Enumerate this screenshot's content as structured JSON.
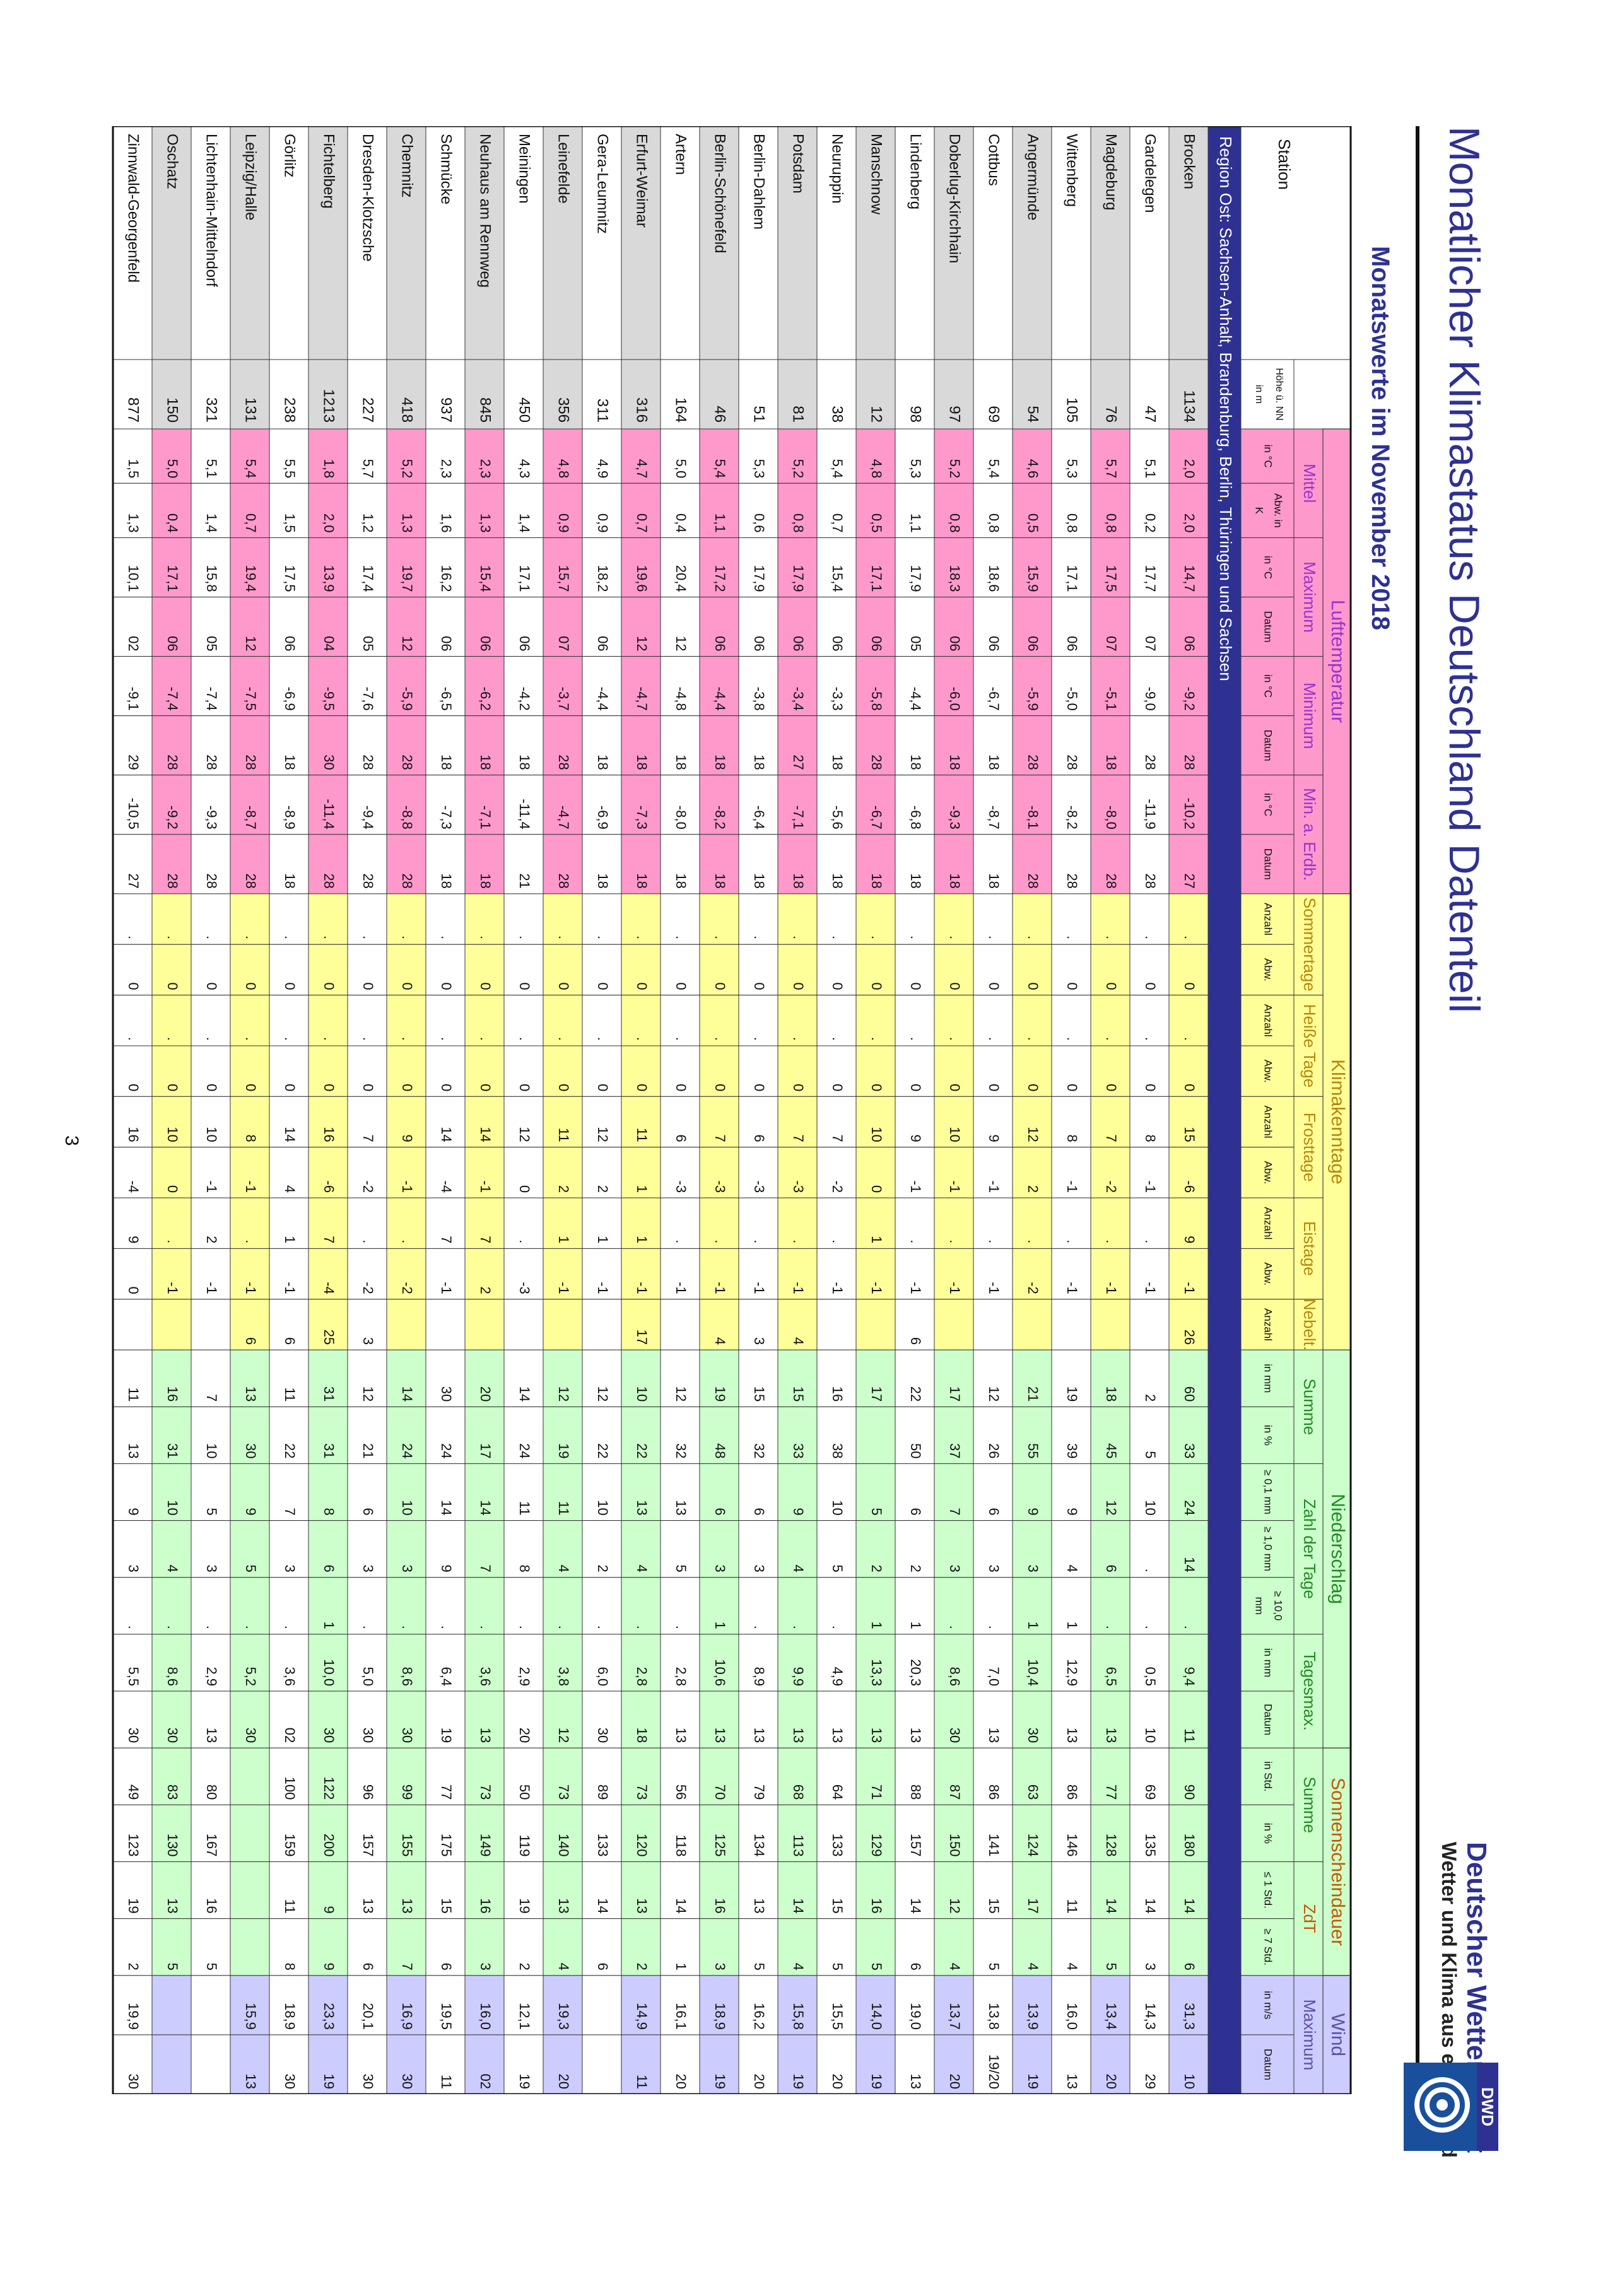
{
  "title": "Monatlicher Klimastatus Deutschland Datenteil",
  "subtitle": "Monatswerte im November 2018",
  "brand": {
    "name": "Deutscher Wetterdienst",
    "tagline": "Wetter und Klima aus einer Hand",
    "abbr": "DWD"
  },
  "page_number": "3",
  "colors": {
    "navy": "#2e3192",
    "pink": "#ff99cc",
    "yellow": "#ffff99",
    "green": "#ccffcc",
    "lilac": "#ccccff",
    "grey": "#d9d9d9",
    "rowWhite": "#ffffff"
  },
  "header": {
    "station": "Station",
    "hoehe": "Höhe ü. NN in m",
    "groups": [
      {
        "label": "Lufttemperatur",
        "color": "#9933cc"
      },
      {
        "label": "Klimakenntage",
        "color": "#b8860b"
      },
      {
        "label": "Niederschlag",
        "color": "#228b22"
      },
      {
        "label": "Sonnenscheindauer",
        "color": "#c05a00"
      },
      {
        "label": "Wind",
        "color": "#5b4fa8"
      }
    ],
    "subgroups": [
      "Mittel",
      "Maximum",
      "Minimum",
      "Min. a. Erdb.",
      "Sommertage",
      "Heiße Tage",
      "Frosttage",
      "Eistage",
      "Nebelt.",
      "Summe",
      "Zahl der Tage",
      "Tagesmax.",
      "Summe",
      "ZdT",
      "Maximum"
    ],
    "units": [
      "in °C",
      "Abw. in K",
      "in °C",
      "Datum",
      "in °C",
      "Datum",
      "in °C",
      "Datum",
      "Anzahl",
      "Abw.",
      "Anzahl",
      "Abw.",
      "Anzahl",
      "Abw.",
      "Anzahl",
      "Abw.",
      "Anzahl",
      "in mm",
      "in %",
      "≥ 0,1 mm",
      "≥ 1,0 mm",
      "≥ 10,0 mm",
      "in mm",
      "Datum",
      "in Std.",
      "in %",
      "≤ 1 Std.",
      "≥ 7 Std.",
      "in m/s",
      "Datum"
    ],
    "region": "Region Ost: Sachsen-Anhalt, Brandenburg, Berlin, Thüringen und Sachsen"
  },
  "rows": [
    {
      "name": "Brocken",
      "h": "1134",
      "v": [
        "2,0",
        "2,0",
        "14,7",
        "06",
        "-9,2",
        "28",
        "-10,2",
        "27",
        ".",
        "0",
        ".",
        "0",
        "15",
        "-6",
        "9",
        "-1",
        "26",
        "60",
        "33",
        "24",
        "14",
        ".",
        "9,4",
        "11",
        "90",
        "180",
        "14",
        "6",
        "31,3",
        "10"
      ]
    },
    {
      "name": "Gardelegen",
      "h": "47",
      "v": [
        "5,1",
        "0,2",
        "17,7",
        "07",
        "-9,0",
        "28",
        "-11,9",
        "28",
        ".",
        "0",
        ".",
        "0",
        "8",
        "-1",
        ".",
        "-1",
        "",
        "2",
        "5",
        "10",
        ".",
        ".",
        "0,5",
        "10",
        "69",
        "135",
        "14",
        "3",
        "14,3",
        "29"
      ]
    },
    {
      "name": "Magdeburg",
      "h": "76",
      "v": [
        "5,7",
        "0,8",
        "17,5",
        "07",
        "-5,1",
        "18",
        "-8,0",
        "28",
        ".",
        "0",
        ".",
        "0",
        "7",
        "-2",
        ".",
        "-1",
        "",
        "18",
        "45",
        "12",
        "6",
        ".",
        "6,5",
        "13",
        "77",
        "128",
        "14",
        "5",
        "13,4",
        "20"
      ]
    },
    {
      "name": "Wittenberg",
      "h": "105",
      "v": [
        "5,3",
        "0,8",
        "17,1",
        "06",
        "-5,0",
        "28",
        "-8,2",
        "28",
        ".",
        "0",
        ".",
        "0",
        "8",
        "-1",
        ".",
        "-1",
        "",
        "19",
        "39",
        "9",
        "4",
        "1",
        "12,9",
        "13",
        "86",
        "146",
        "11",
        "4",
        "16,0",
        "13"
      ]
    },
    {
      "name": "Angermünde",
      "h": "54",
      "v": [
        "4,6",
        "0,5",
        "15,9",
        "06",
        "-5,9",
        "28",
        "-8,1",
        "28",
        ".",
        "0",
        ".",
        "0",
        "12",
        "2",
        ".",
        "-2",
        "",
        "21",
        "55",
        "9",
        "3",
        "1",
        "10,4",
        "30",
        "63",
        "124",
        "17",
        "4",
        "13,9",
        "19"
      ]
    },
    {
      "name": "Cottbus",
      "h": "69",
      "v": [
        "5,4",
        "0,8",
        "18,6",
        "06",
        "-6,7",
        "18",
        "-8,7",
        "18",
        ".",
        "0",
        ".",
        "0",
        "9",
        "-1",
        ".",
        "-1",
        "",
        "12",
        "26",
        "6",
        "3",
        ".",
        "7,0",
        "13",
        "86",
        "141",
        "15",
        "5",
        "13,8",
        "19/20"
      ]
    },
    {
      "name": "Doberlug-Kirchhain",
      "h": "97",
      "v": [
        "5,2",
        "0,8",
        "18,3",
        "06",
        "-6,0",
        "18",
        "-9,3",
        "18",
        ".",
        "0",
        ".",
        "0",
        "10",
        "-1",
        ".",
        "-1",
        "",
        "17",
        "37",
        "7",
        "3",
        ".",
        "8,6",
        "30",
        "87",
        "150",
        "12",
        "4",
        "13,7",
        "20"
      ]
    },
    {
      "name": "Lindenberg",
      "h": "98",
      "v": [
        "5,3",
        "1,1",
        "17,9",
        "05",
        "-4,4",
        "18",
        "-6,8",
        "18",
        ".",
        "0",
        ".",
        "0",
        "9",
        "-1",
        ".",
        "-1",
        "6",
        "22",
        "50",
        "6",
        "2",
        "1",
        "20,3",
        "13",
        "88",
        "157",
        "14",
        "6",
        "19,0",
        "13"
      ]
    },
    {
      "name": "Manschnow",
      "h": "12",
      "v": [
        "4,8",
        "0,5",
        "17,1",
        "06",
        "-5,8",
        "28",
        "-6,7",
        "18",
        ".",
        "0",
        ".",
        "0",
        "10",
        "0",
        "1",
        "-1",
        "",
        "17",
        "",
        "5",
        "2",
        "1",
        "13,3",
        "13",
        "71",
        "129",
        "16",
        "5",
        "14,0",
        "19"
      ]
    },
    {
      "name": "Neuruppin",
      "h": "38",
      "v": [
        "5,4",
        "0,7",
        "15,4",
        "06",
        "-3,3",
        "18",
        "-5,6",
        "18",
        ".",
        "0",
        ".",
        "0",
        "7",
        "-2",
        ".",
        "-1",
        "",
        "16",
        "38",
        "10",
        "5",
        ".",
        "4,9",
        "13",
        "64",
        "133",
        "15",
        "5",
        "15,5",
        "20"
      ]
    },
    {
      "name": "Potsdam",
      "h": "81",
      "v": [
        "5,2",
        "0,8",
        "17,9",
        "06",
        "-3,4",
        "27",
        "-7,1",
        "18",
        ".",
        "0",
        ".",
        "0",
        "7",
        "-3",
        ".",
        "-1",
        "4",
        "15",
        "33",
        "9",
        "4",
        ".",
        "9,9",
        "13",
        "68",
        "113",
        "14",
        "4",
        "15,8",
        "19"
      ]
    },
    {
      "name": "Berlin-Dahlem",
      "h": "51",
      "v": [
        "5,3",
        "0,6",
        "17,9",
        "06",
        "-3,8",
        "18",
        "-6,4",
        "18",
        ".",
        "0",
        ".",
        "0",
        "6",
        "-3",
        ".",
        "-1",
        "3",
        "15",
        "32",
        "6",
        "3",
        ".",
        "8,9",
        "13",
        "79",
        "134",
        "13",
        "5",
        "16,2",
        "20"
      ]
    },
    {
      "name": "Berlin-Schönefeld",
      "h": "46",
      "v": [
        "5,4",
        "1,1",
        "17,2",
        "06",
        "-4,4",
        "18",
        "-8,2",
        "18",
        ".",
        "0",
        ".",
        "0",
        "7",
        "-3",
        ".",
        "-1",
        "4",
        "19",
        "48",
        "6",
        "3",
        "1",
        "10,6",
        "13",
        "70",
        "125",
        "16",
        "3",
        "18,9",
        "19"
      ]
    },
    {
      "name": "Artern",
      "h": "164",
      "v": [
        "5,0",
        "0,4",
        "20,4",
        "12",
        "-4,8",
        "18",
        "-8,0",
        "18",
        ".",
        "0",
        ".",
        "0",
        "6",
        "-3",
        ".",
        "-1",
        "",
        "12",
        "32",
        "13",
        "5",
        ".",
        "2,8",
        "13",
        "56",
        "118",
        "14",
        "1",
        "16,1",
        "20"
      ]
    },
    {
      "name": "Erfurt-Weimar",
      "h": "316",
      "v": [
        "4,7",
        "0,7",
        "19,6",
        "12",
        "-4,7",
        "18",
        "-7,3",
        "18",
        ".",
        "0",
        ".",
        "0",
        "11",
        "1",
        "1",
        "-1",
        "17",
        "10",
        "22",
        "13",
        "4",
        ".",
        "2,8",
        "18",
        "73",
        "120",
        "13",
        "2",
        "14,9",
        "11"
      ]
    },
    {
      "name": "Gera-Leumnitz",
      "h": "311",
      "v": [
        "4,9",
        "0,9",
        "18,2",
        "06",
        "-4,4",
        "18",
        "-6,9",
        "18",
        ".",
        "0",
        ".",
        "0",
        "12",
        "2",
        "1",
        "-1",
        "",
        "12",
        "22",
        "10",
        "2",
        ".",
        "6,0",
        "30",
        "89",
        "133",
        "14",
        "6",
        "",
        ""
      ]
    },
    {
      "name": "Leinefelde",
      "h": "356",
      "v": [
        "4,8",
        "0,9",
        "15,7",
        "07",
        "-3,7",
        "28",
        "-4,7",
        "28",
        ".",
        "0",
        ".",
        "0",
        "11",
        "2",
        "1",
        "-1",
        "",
        "12",
        "19",
        "11",
        "4",
        ".",
        "3,8",
        "12",
        "73",
        "140",
        "13",
        "4",
        "19,3",
        "20"
      ]
    },
    {
      "name": "Meiningen",
      "h": "450",
      "v": [
        "4,3",
        "1,4",
        "17,1",
        "06",
        "-4,2",
        "18",
        "-11,4",
        "21",
        ".",
        "0",
        ".",
        "0",
        "12",
        "0",
        ".",
        "-3",
        "",
        "14",
        "24",
        "11",
        "8",
        ".",
        "2,9",
        "20",
        "50",
        "119",
        "19",
        "2",
        "12,1",
        "19"
      ]
    },
    {
      "name": "Neuhaus am Rennweg",
      "h": "845",
      "v": [
        "2,3",
        "1,3",
        "15,4",
        "06",
        "-6,2",
        "18",
        "-7,1",
        "18",
        ".",
        "0",
        ".",
        "0",
        "14",
        "-1",
        "7",
        "2",
        "",
        "20",
        "17",
        "14",
        "7",
        ".",
        "3,6",
        "13",
        "73",
        "149",
        "16",
        "3",
        "16,0",
        "02"
      ]
    },
    {
      "name": "Schmücke",
      "h": "937",
      "v": [
        "2,3",
        "1,6",
        "16,2",
        "06",
        "-6,5",
        "18",
        "-7,3",
        "18",
        ".",
        "0",
        ".",
        "0",
        "14",
        "-4",
        "7",
        "-1",
        "",
        "30",
        "24",
        "14",
        "9",
        ".",
        "6,4",
        "19",
        "77",
        "175",
        "15",
        "6",
        "19,5",
        "11"
      ]
    },
    {
      "name": "Chemnitz",
      "h": "418",
      "v": [
        "5,2",
        "1,3",
        "19,7",
        "12",
        "-5,9",
        "28",
        "-8,8",
        "28",
        ".",
        "0",
        ".",
        "0",
        "9",
        "-1",
        ".",
        "-2",
        "",
        "14",
        "24",
        "10",
        "3",
        ".",
        "8,6",
        "30",
        "99",
        "155",
        "13",
        "7",
        "16,9",
        "30"
      ]
    },
    {
      "name": "Dresden-Klotzsche",
      "h": "227",
      "v": [
        "5,7",
        "1,2",
        "17,4",
        "05",
        "-7,6",
        "28",
        "-9,4",
        "28",
        ".",
        "0",
        ".",
        "0",
        "7",
        "-2",
        ".",
        "-2",
        "3",
        "12",
        "21",
        "6",
        "3",
        ".",
        "5,0",
        "30",
        "96",
        "157",
        "13",
        "6",
        "20,1",
        "30"
      ]
    },
    {
      "name": "Fichtelberg",
      "h": "1213",
      "v": [
        "1,8",
        "2,0",
        "13,9",
        "04",
        "-9,5",
        "30",
        "-11,4",
        "28",
        ".",
        "0",
        ".",
        "0",
        "16",
        "-6",
        "7",
        "-4",
        "25",
        "31",
        "31",
        "8",
        "6",
        "1",
        "10,0",
        "30",
        "122",
        "200",
        "9",
        "9",
        "23,3",
        "19"
      ]
    },
    {
      "name": "Görlitz",
      "h": "238",
      "v": [
        "5,5",
        "1,5",
        "17,5",
        "06",
        "-6,9",
        "18",
        "-8,9",
        "18",
        ".",
        "0",
        ".",
        "0",
        "14",
        "4",
        "1",
        "-1",
        "6",
        "11",
        "22",
        "7",
        "3",
        ".",
        "3,6",
        "02",
        "100",
        "159",
        "11",
        "8",
        "18,9",
        "30"
      ]
    },
    {
      "name": "Leipzig/Halle",
      "h": "131",
      "v": [
        "5,4",
        "0,7",
        "19,4",
        "12",
        "-7,5",
        "28",
        "-8,7",
        "28",
        ".",
        "0",
        ".",
        "0",
        "8",
        "-1",
        ".",
        "-1",
        "6",
        "13",
        "30",
        "9",
        "5",
        ".",
        "5,2",
        "30",
        "",
        "",
        "",
        "",
        "15,9",
        "13"
      ]
    },
    {
      "name": "Lichtenhain-Mittelndorf",
      "h": "321",
      "v": [
        "5,1",
        "1,4",
        "15,8",
        "05",
        "-7,4",
        "28",
        "-9,3",
        "28",
        ".",
        "0",
        ".",
        "0",
        "10",
        "-1",
        "2",
        "-1",
        "",
        "7",
        "10",
        "5",
        "3",
        ".",
        "2,9",
        "13",
        "80",
        "167",
        "16",
        "5",
        "",
        ""
      ]
    },
    {
      "name": "Oschatz",
      "h": "150",
      "v": [
        "5,0",
        "0,4",
        "17,1",
        "06",
        "-7,4",
        "28",
        "-9,2",
        "28",
        ".",
        "0",
        ".",
        "0",
        "10",
        "0",
        ".",
        "-1",
        "",
        "16",
        "31",
        "10",
        "4",
        ".",
        "8,6",
        "30",
        "83",
        "130",
        "13",
        "5",
        "",
        ""
      ]
    },
    {
      "name": "Zinnwald-Georgenfeld",
      "h": "877",
      "v": [
        "1,5",
        "1,3",
        "10,1",
        "02",
        "-9,1",
        "29",
        "-10,5",
        "27",
        ".",
        "0",
        ".",
        "0",
        "16",
        "-4",
        "9",
        "0",
        "",
        "11",
        "13",
        "9",
        "3",
        ".",
        "5,5",
        "30",
        "49",
        "123",
        "19",
        "2",
        "19,9",
        "30"
      ]
    }
  ]
}
